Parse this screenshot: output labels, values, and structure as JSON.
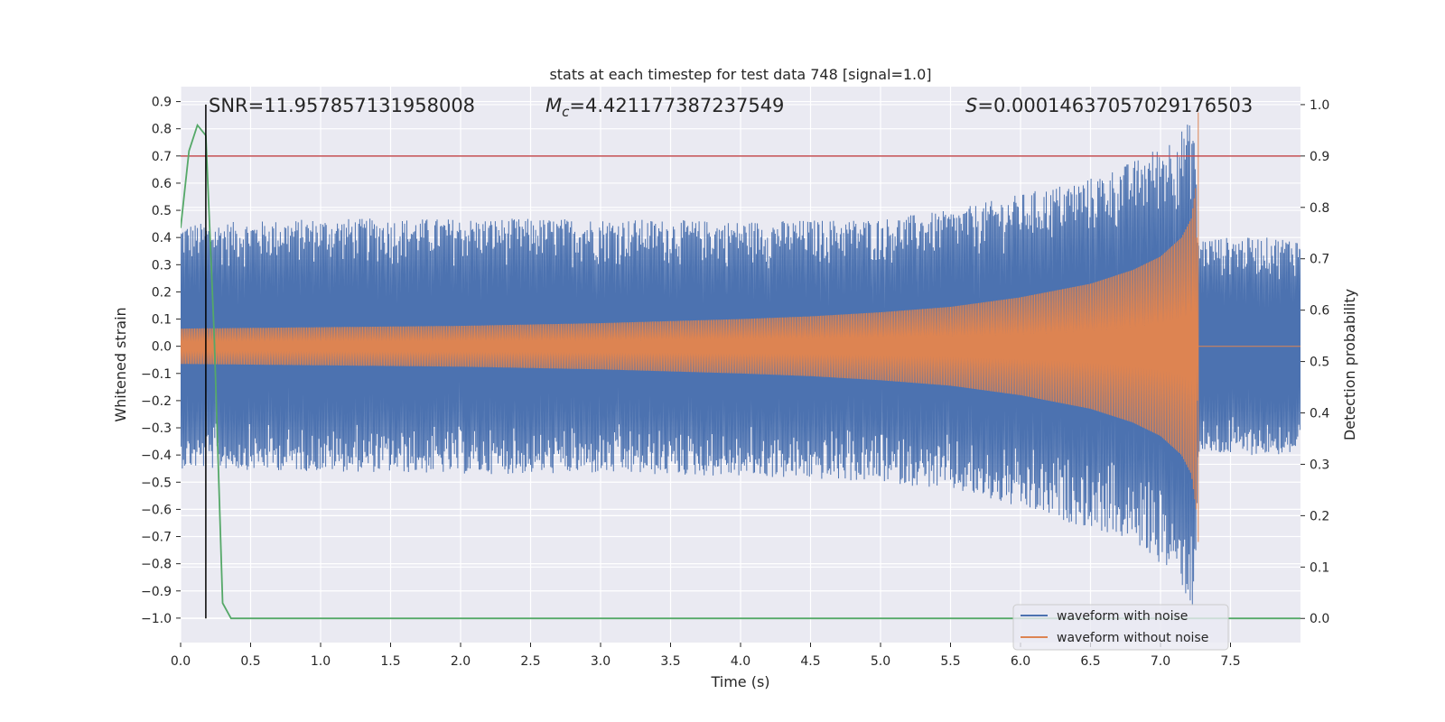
{
  "chart_data": {
    "type": "line",
    "title": "stats at each timestep for test data 748 [signal=1.0]",
    "xlabel": "Time (s)",
    "ylabel": "Whitened strain",
    "y2label": "Detection probability",
    "xlim": [
      0,
      8
    ],
    "ylim": [
      -1.09,
      0.955
    ],
    "y2lim": [
      -0.047,
      1.035
    ],
    "x_ticks": [
      "0.0",
      "0.5",
      "1.0",
      "1.5",
      "2.0",
      "2.5",
      "3.0",
      "3.5",
      "4.0",
      "4.5",
      "5.0",
      "5.5",
      "6.0",
      "6.5",
      "7.0",
      "7.5"
    ],
    "y_ticks": [
      "0.9",
      "0.8",
      "0.7",
      "0.6",
      "0.5",
      "0.4",
      "0.3",
      "0.2",
      "0.1",
      "0.0",
      "−0.1",
      "−0.2",
      "−0.3",
      "−0.4",
      "−0.5",
      "−0.6",
      "−0.7",
      "−0.8",
      "−0.9",
      "−1.0"
    ],
    "y2_ticks": [
      "1.0",
      "0.9",
      "0.8",
      "0.7",
      "0.6",
      "0.5",
      "0.4",
      "0.3",
      "0.2",
      "0.1",
      "0.0"
    ],
    "grid": true,
    "legend_position": "lower-right",
    "colors": {
      "noise": "#4c72b0",
      "signal": "#dd8452",
      "probability": "#55a868",
      "threshold": "#c44e52",
      "marker": "#000000",
      "background": "#eaeaf2",
      "grid": "#ffffff"
    },
    "series": [
      {
        "name": "waveform with noise",
        "envelope": {
          "x": [
            0.0,
            1.0,
            2.0,
            3.0,
            4.0,
            5.0,
            5.5,
            6.0,
            6.5,
            6.8,
            7.0,
            7.15,
            7.24,
            7.27,
            7.3,
            7.5,
            8.0
          ],
          "upper_max": [
            0.45,
            0.47,
            0.47,
            0.47,
            0.46,
            0.47,
            0.5,
            0.56,
            0.62,
            0.68,
            0.74,
            0.8,
            0.84,
            0.4,
            0.4,
            0.4,
            0.4
          ],
          "lower_min": [
            -0.45,
            -0.46,
            -0.47,
            -0.47,
            -0.48,
            -0.5,
            -0.53,
            -0.6,
            -0.67,
            -0.72,
            -0.8,
            -0.88,
            -1.0,
            -0.4,
            -0.4,
            -0.4,
            -0.4
          ]
        }
      },
      {
        "name": "waveform without noise",
        "envelope": {
          "x": [
            0.0,
            1.0,
            2.0,
            3.0,
            4.0,
            4.5,
            5.0,
            5.5,
            6.0,
            6.5,
            6.8,
            7.0,
            7.15,
            7.22,
            7.255,
            7.27,
            8.0
          ],
          "amplitude": [
            0.065,
            0.07,
            0.075,
            0.085,
            0.1,
            0.11,
            0.125,
            0.145,
            0.18,
            0.23,
            0.28,
            0.33,
            0.4,
            0.47,
            0.6,
            0.0,
            0.0
          ]
        },
        "peak": {
          "x": 7.27,
          "upper": 0.86,
          "lower": -0.72
        }
      },
      {
        "name": "",
        "axis": "right",
        "x": [
          0.0,
          0.06,
          0.12,
          0.18,
          0.24,
          0.3,
          0.36,
          0.42,
          8.0
        ],
        "values": [
          0.76,
          0.91,
          0.96,
          0.94,
          0.55,
          0.03,
          0.0,
          0.0,
          0.0
        ]
      }
    ],
    "threshold": {
      "axis": "right",
      "value": 0.9
    },
    "marker_line": {
      "x": 0.18,
      "y_from": 0.0,
      "y_to": 1.0
    },
    "annotations": [
      {
        "id": "snr",
        "text": "SNR=11.957857131958008"
      },
      {
        "id": "mc",
        "symbol": "M",
        "subscript": "c",
        "text": "=4.421177387237549"
      },
      {
        "id": "s",
        "symbol": "S",
        "text": "=0.00014637057029176503"
      }
    ]
  }
}
